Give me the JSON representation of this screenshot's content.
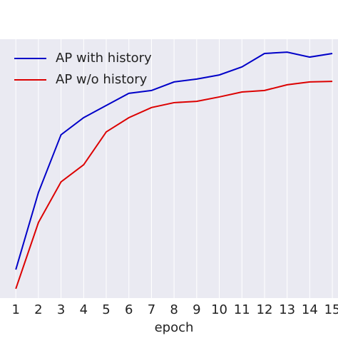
{
  "chart_data": {
    "type": "line",
    "xlabel": "epoch",
    "x": [
      1,
      2,
      3,
      4,
      5,
      6,
      7,
      8,
      9,
      10,
      11,
      12,
      13,
      14,
      15
    ],
    "xlim": [
      0.3,
      15.25
    ],
    "xticks": [
      1,
      2,
      3,
      4,
      5,
      6,
      7,
      8,
      9,
      10,
      11,
      12,
      13,
      14,
      15
    ],
    "ylim": [
      0,
      100
    ],
    "grid": true,
    "legend": "upper left",
    "series": [
      {
        "name": "AP with history",
        "color": "#0000c8",
        "values": [
          11.0,
          40.8,
          63.1,
          69.7,
          74.4,
          79.1,
          80.2,
          83.5,
          84.6,
          86.2,
          89.3,
          94.5,
          95.0,
          93.1,
          94.5
        ]
      },
      {
        "name": "AP w/o history",
        "color": "#dc0000",
        "values": [
          3.6,
          29.2,
          44.9,
          51.5,
          64.2,
          69.7,
          73.6,
          75.5,
          76.0,
          77.7,
          79.6,
          80.2,
          82.4,
          83.5,
          83.7
        ]
      }
    ]
  }
}
